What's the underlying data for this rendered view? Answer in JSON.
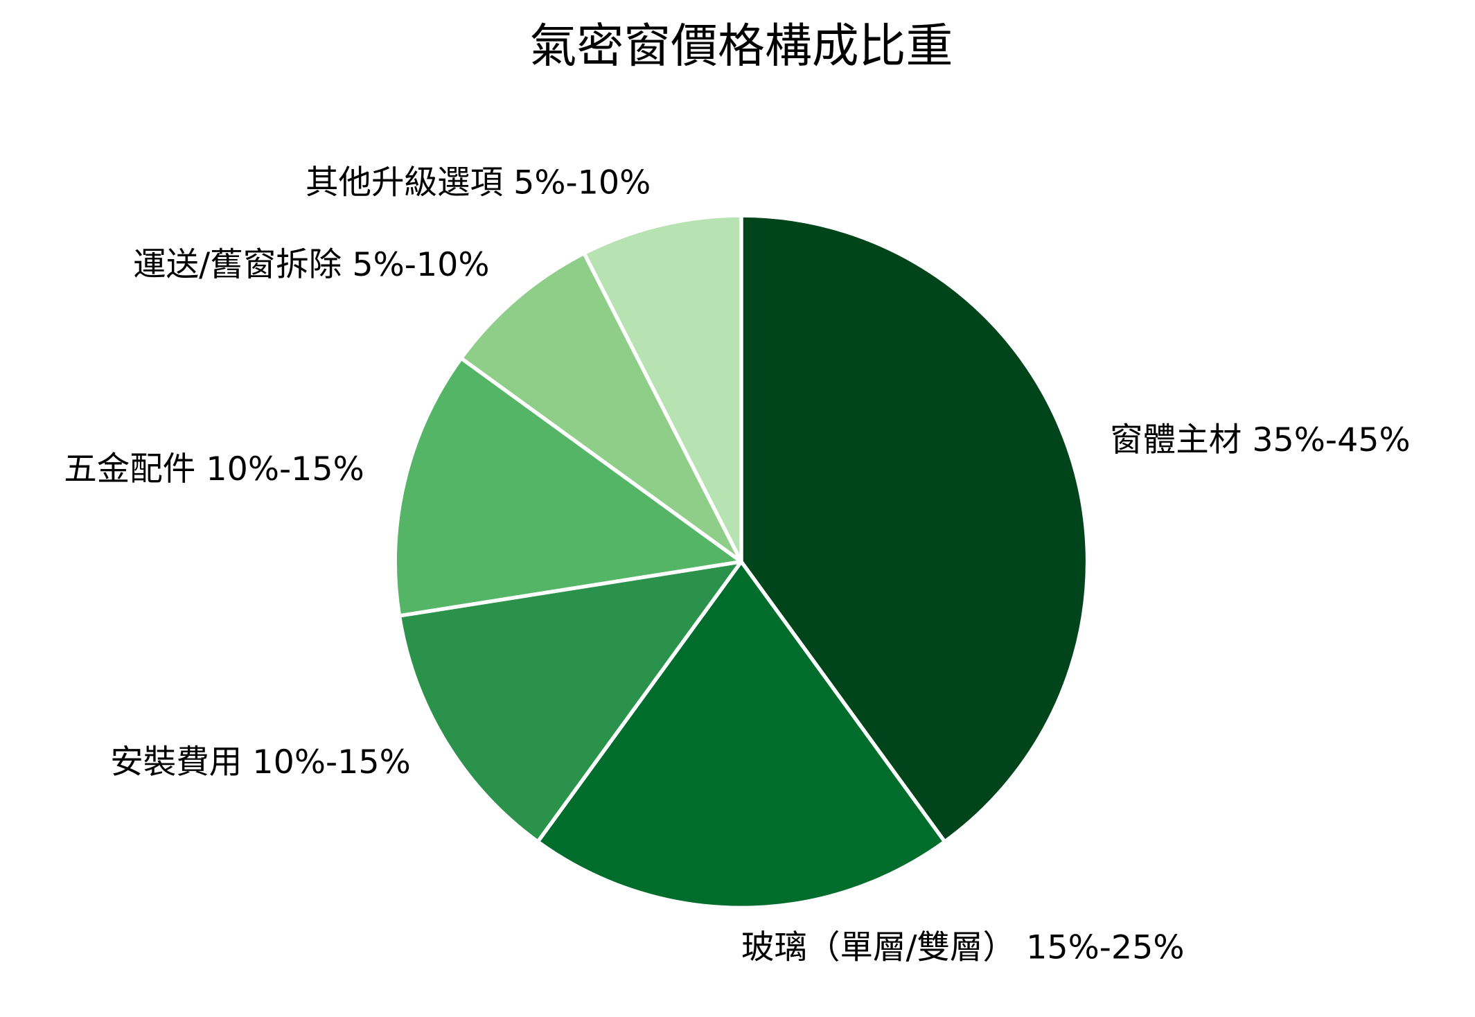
{
  "chart_data": {
    "type": "pie",
    "title": "氣密窗價格構成比重",
    "categories": [
      "窗體主材 35%-45%",
      "玻璃（單層/雙層） 15%-25%",
      "安裝費用 10%-15%",
      "五金配件 10%-15%",
      "運送/舊窗拆除 5%-10%",
      "其他升級選項 5%-10%"
    ],
    "values": [
      40,
      20,
      12.5,
      12.5,
      7.5,
      7.5
    ],
    "colors": [
      "#00441b",
      "#006d2c",
      "#2a924a",
      "#55b567",
      "#8ece88",
      "#b7e2b1"
    ]
  }
}
